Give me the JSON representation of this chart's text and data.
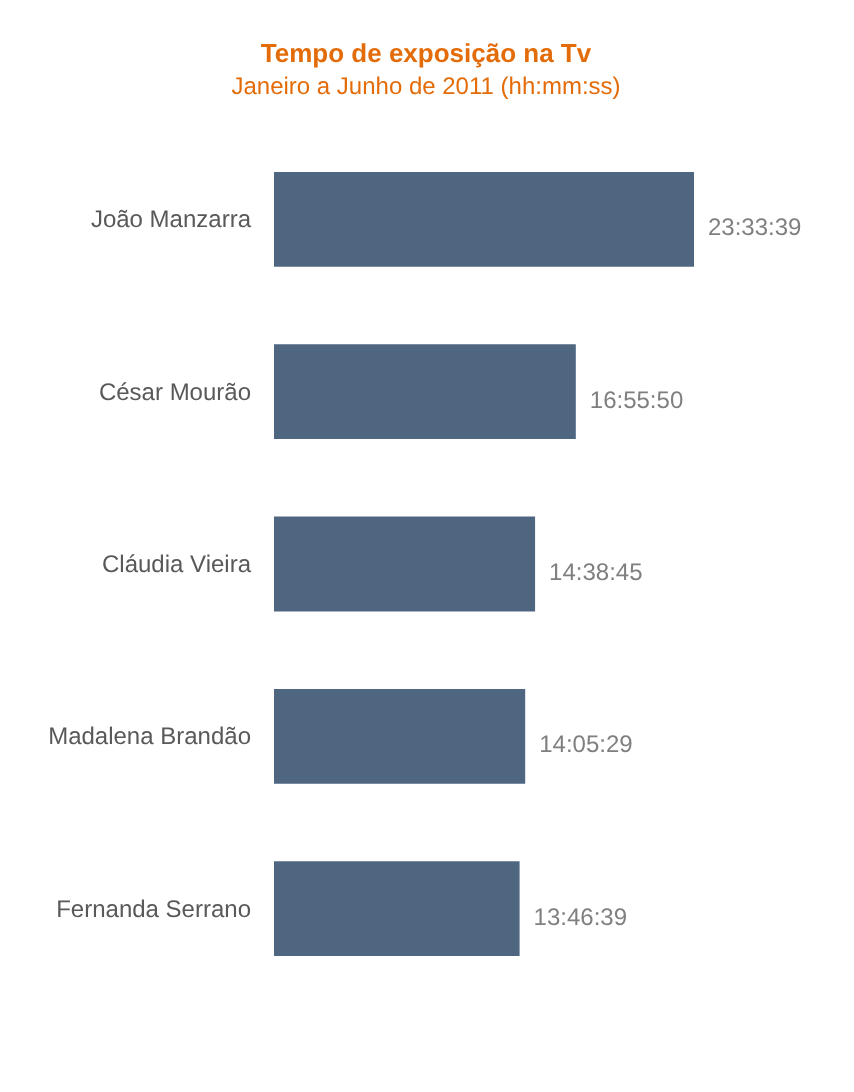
{
  "chart_data": {
    "type": "bar",
    "orientation": "horizontal",
    "title": "Tempo de exposição na Tv",
    "subtitle": "Janeiro a Junho de 2011 (hh:mm:ss)",
    "categories": [
      "João Manzarra",
      "César Mourão",
      "Cláudia Vieira",
      "Madalena Brandão",
      "Fernanda Serrano"
    ],
    "values": [
      23.5608,
      16.9306,
      14.6458,
      14.0914,
      13.7775
    ],
    "value_labels": [
      "23:33:39",
      "16:55:50",
      "14:38:45",
      "14:05:29",
      "13:46:39"
    ],
    "color": "#4f6680"
  }
}
